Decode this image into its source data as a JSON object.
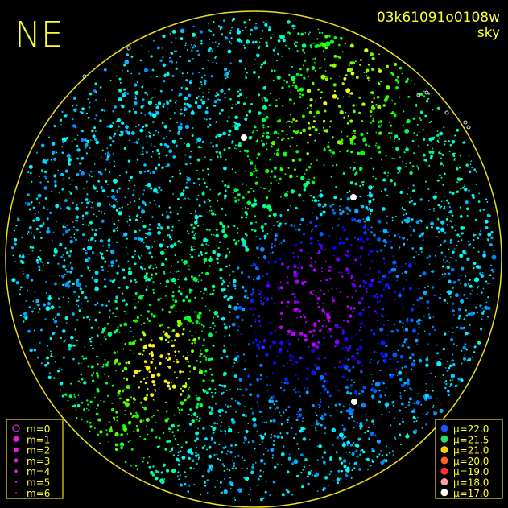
{
  "header": {
    "corner": "NE",
    "frame": "03k61091o0108w",
    "label": "sky"
  },
  "magnitude_legend": [
    "m=0",
    "m=1",
    "m=2",
    "m=3",
    "m=4",
    "m=5",
    "m=6"
  ],
  "magnitude_color": "#e020e0",
  "sky_legend": [
    {
      "label": "μ=22.0",
      "color": "#2050ff"
    },
    {
      "label": "μ=21.5",
      "color": "#20e060"
    },
    {
      "label": "μ=21.0",
      "color": "#ffd000"
    },
    {
      "label": "μ=20.0",
      "color": "#ff6020"
    },
    {
      "label": "μ=19.0",
      "color": "#ff3030"
    },
    {
      "label": "μ=18.0",
      "color": "#ffa0a0"
    },
    {
      "label": "μ=17.0",
      "color": "#ffffff"
    }
  ]
}
